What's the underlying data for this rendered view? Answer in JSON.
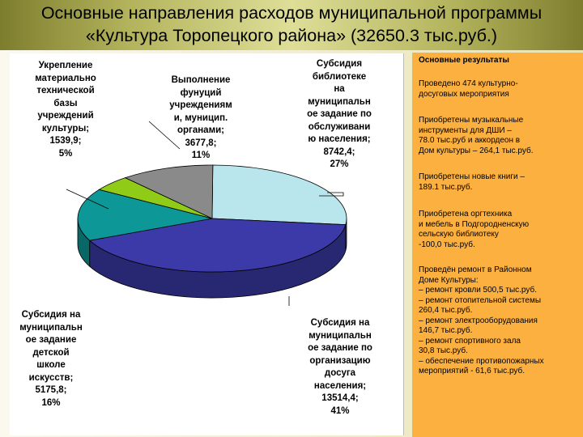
{
  "title": {
    "line1": "Основные направления расходов муниципальной программы",
    "line2": "«Культура Торопецкого района» (32650.3 тыс.руб.)"
  },
  "chart_data": {
    "type": "pie",
    "slices": [
      {
        "label": "Субсидия библиотеке на муниципальное задание по обслуживанию населения",
        "value": 8742.4,
        "percent": 27,
        "color": "#b8e6ec"
      },
      {
        "label": "Субсидия на муниципальное задание по организацию досуга населения",
        "value": 13514.4,
        "percent": 41,
        "color": "#3b3aa8"
      },
      {
        "label": "Субсидия на муниципальное задание детской школе искусств",
        "value": 5175.8,
        "percent": 16,
        "color": "#0e9797"
      },
      {
        "label": "Укрепление материально технической базы учреждений культуры",
        "value": 1539.9,
        "percent": 5,
        "color": "#90cb18"
      },
      {
        "label": "Выполнение фуниций учреждениям и, муницип. органами",
        "value": 3677.8,
        "percent": 11,
        "color": "#8a8a8a"
      }
    ],
    "labels_text": {
      "ukreplenie": "Укрепление\nматериально\nтехнической\nбазы\nучреждений\nкультуры;\n1539,9;\n5%",
      "vypolnenie": "Выполнение\nфунуций\nучреждениям\nи, муницип.\nорганами;\n3677,8;\n11%",
      "biblioteka": "Субсидия\nбиблиотеке\nна\nмуниципальн\nое задание по\nобслуживани\nю населения;\n8742,4;\n27%",
      "shkola": "Субсидия на\nмуниципальн\nое задание\nдетской\nшколе\nискусств;\n5175,8;\n16%",
      "dosug": "Субсидия на\nмуниципальн\nое задание по\nорганизацию\nдосуга\nнаселения;\n13514,4;\n41%"
    }
  },
  "results": {
    "heading": "Основные результаты",
    "items": [
      "Проведено 474 культурно-\nдосуговых мероприятия",
      "Приобретены музыкальные\n инструменты для ДШИ –\n 78.0 тыс.руб и аккордеон в\nДом культуры  – 264,1 тыс.руб.",
      "Приобретены новые книги –\n189.1 тыс.руб.",
      "Приобретена оргтехника\nи мебель в Подгородненскую\nсельскую библиотеку\n-100,0 тыс.руб.",
      "Проведён ремонт в  Районном\nДоме Культуры:\n– ремонт кровли 500,5 тыс.руб.\n– ремонт отопительной системы\n260,4 тыс.руб.\n– ремонт электрооборудования\n146,7 тыс.руб.\n– ремонт спортивного зала\n  30,8 тыс.руб.\n– обеспечение противопожарных\nмероприятий -  61,6 тыс.руб."
    ]
  }
}
